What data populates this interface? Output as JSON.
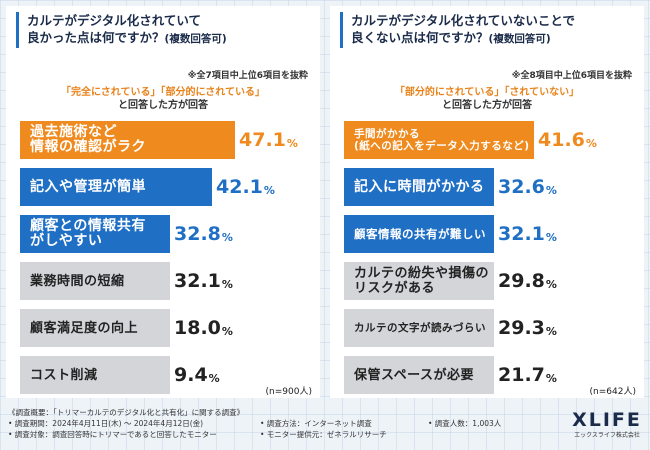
{
  "colors": {
    "orange": "#ef8a1f",
    "blue": "#1f6fc5",
    "gray": "#d3d5d9",
    "gray_text": "#222222"
  },
  "chart_data": [
    {
      "type": "bar",
      "title": "カルテがデジタル化されていて",
      "title2": "良かった点は何ですか？",
      "title_sub": "(複数回答可)",
      "note": "※全7項目中上位6項目を抜粋",
      "condition_line1_a": "「完全にされている」",
      "condition_line1_b": "「部分的にされている」",
      "condition_line2": "と回答した方が回答",
      "categories": [
        "過去施術など\n情報の確認がラク",
        "記入や管理が簡単",
        "顧客との情報共有\nがしやすい",
        "業務時間の短縮",
        "顧客満足度の向上",
        "コスト削減"
      ],
      "values": [
        47.1,
        42.1,
        32.8,
        32.1,
        18.0,
        9.4
      ],
      "value_labels": [
        "47.1",
        "42.1",
        "32.8",
        "32.1",
        "18.0",
        "9.4"
      ],
      "styles": [
        "orange",
        "blue",
        "blue",
        "gray",
        "gray",
        "gray"
      ],
      "pct_symbol": "%",
      "n": "(n=900人)"
    },
    {
      "type": "bar",
      "title": "カルテがデジタル化されていないことで",
      "title2": "良くない点は何ですか？",
      "title_sub": "(複数回答可)",
      "note": "※全8項目中上位6項目を抜粋",
      "condition_line1_a": "「部分的にされている」",
      "condition_line1_b": "「されていない」",
      "condition_line2": "と回答した方が回答",
      "categories": [
        "手間がかかる\n(紙への記入をデータ入力するなど)",
        "記入に時間がかかる",
        "顧客情報の共有が難しい",
        "カルテの紛失や損傷の\nリスクがある",
        "カルテの文字が読みづらい",
        "保管スペースが必要"
      ],
      "values": [
        41.6,
        32.6,
        32.1,
        29.8,
        29.3,
        21.7
      ],
      "value_labels": [
        "41.6",
        "32.6",
        "32.1",
        "29.8",
        "29.3",
        "21.7"
      ],
      "styles": [
        "orange",
        "blue",
        "blue",
        "gray",
        "gray",
        "gray"
      ],
      "pct_symbol": "%",
      "n": "(n=642人)"
    }
  ],
  "footer": {
    "overview": "《調査概要：「トリマーカルテのデジタル化と共有化」に関する調査》",
    "period": "• 調査期間：2024年4月11日(木) ～ 2024年4月12日(金)",
    "method": "• 調査方法：インターネット調査",
    "people": "• 調査人数：1,003人",
    "target": "• 調査対象：調査回答時にトリマーであると回答したモニター",
    "provider": "• モニター提供元：ゼネラルリサーチ"
  },
  "logo": {
    "mark": "XLIFE",
    "small": "エックスライフ株式会社"
  }
}
